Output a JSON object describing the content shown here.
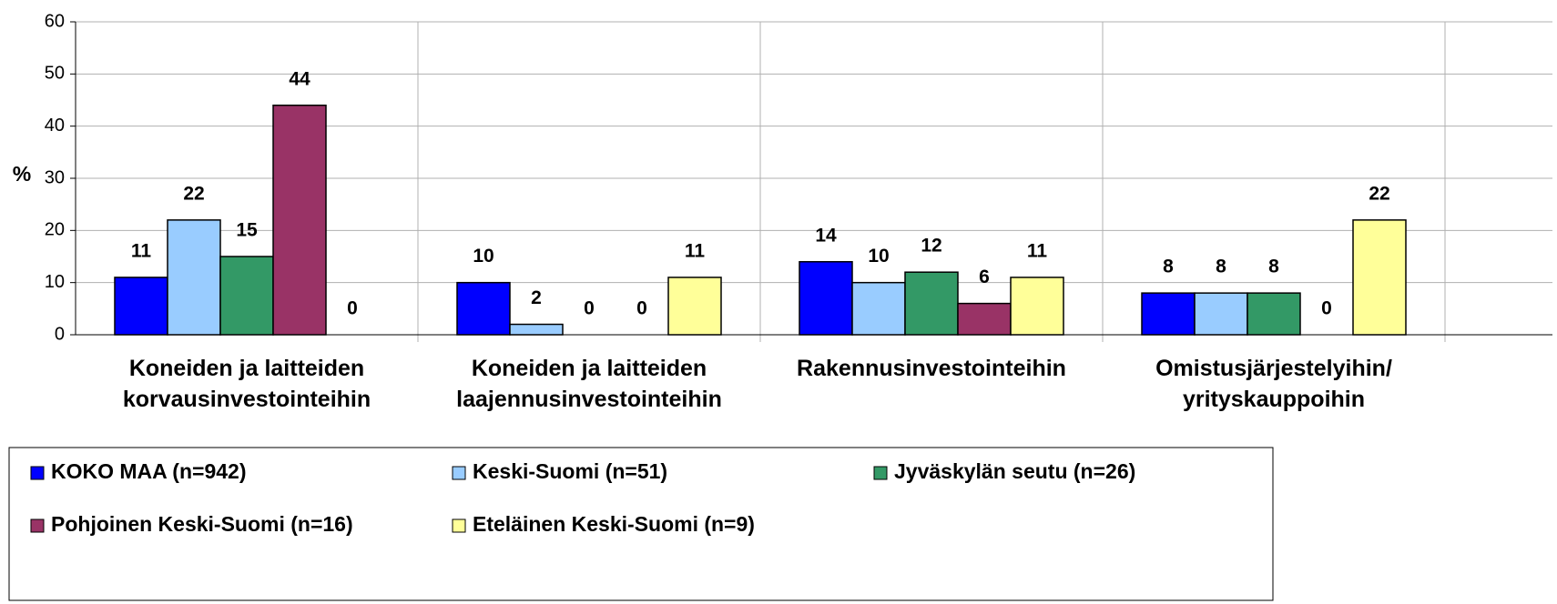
{
  "chart_data": {
    "type": "bar",
    "y_label": "%",
    "categories": [
      "Koneiden ja laitteiden korvausinvestointeihin",
      "Koneiden ja laitteiden laajennusinvestointeihin",
      "Rakennusinvestointeihin",
      "Omistusjärjestelyihin/ yrityskauppoihin"
    ],
    "series": [
      {
        "name": "KOKO MAA (n=942)",
        "color": "#0000ff",
        "values": [
          11,
          10,
          14,
          8
        ]
      },
      {
        "name": "Keski-Suomi (n=51)",
        "color": "#99ccff",
        "values": [
          22,
          2,
          10,
          8
        ]
      },
      {
        "name": "Jyväskylän seutu (n=26)",
        "color": "#339966",
        "values": [
          15,
          0,
          12,
          8
        ]
      },
      {
        "name": "Pohjoinen Keski-Suomi (n=16)",
        "color": "#993366",
        "values": [
          44,
          0,
          6,
          0
        ]
      },
      {
        "name": "Eteläinen Keski-Suomi (n=9)",
        "color": "#ffff99",
        "values": [
          0,
          11,
          11,
          22
        ]
      }
    ],
    "ylim": [
      0,
      60
    ],
    "yticks": [
      0,
      10,
      20,
      30,
      40,
      50,
      60
    ],
    "grid": true,
    "legend": "bottom"
  }
}
